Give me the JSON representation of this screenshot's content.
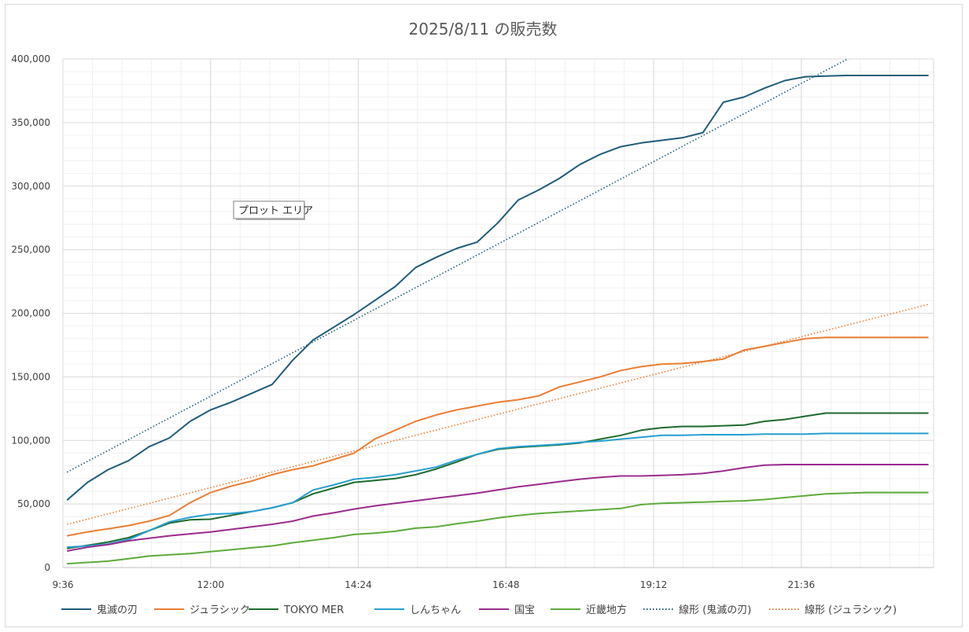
{
  "chart_data": {
    "type": "line",
    "title": "2025/8/11 の販売数",
    "xlabel": "",
    "ylabel": "",
    "ylim": [
      0,
      400000
    ],
    "y_ticks": [
      0,
      50000,
      100000,
      150000,
      200000,
      250000,
      300000,
      350000,
      400000
    ],
    "y_tick_labels": [
      "0",
      "50,000",
      "100,000",
      "150,000",
      "200,000",
      "250,000",
      "300,000",
      "350,000",
      "400,000"
    ],
    "x_ticks": [
      "9:36",
      "12:00",
      "14:24",
      "16:48",
      "19:12",
      "21:36"
    ],
    "x_tick_minutes": [
      576,
      720,
      864,
      1008,
      1152,
      1296
    ],
    "xlim_minutes": [
      576,
      1425
    ],
    "grid": true,
    "legend_position": "bottom",
    "tooltip": "プロット エリア",
    "x_minutes": [
      580,
      600,
      620,
      640,
      660,
      680,
      700,
      720,
      740,
      760,
      780,
      800,
      820,
      840,
      860,
      880,
      900,
      920,
      940,
      960,
      980,
      1000,
      1020,
      1040,
      1060,
      1080,
      1100,
      1120,
      1140,
      1160,
      1180,
      1200,
      1220,
      1240,
      1260,
      1280,
      1300,
      1320,
      1340,
      1360,
      1380,
      1400,
      1420
    ],
    "series": [
      {
        "name": "鬼滅の刃",
        "color": "#1f5c7a",
        "style": "solid",
        "values": [
          53000,
          67000,
          77000,
          84000,
          95000,
          102000,
          115000,
          124000,
          130000,
          137000,
          144000,
          163000,
          179000,
          189000,
          199000,
          210000,
          221000,
          236000,
          244000,
          251000,
          256000,
          271000,
          289000,
          297000,
          306000,
          317000,
          325000,
          331000,
          334000,
          336000,
          338000,
          342000,
          366000,
          370000,
          377000,
          383000,
          386000,
          386500,
          387000,
          387000,
          387000,
          387000,
          387000
        ]
      },
      {
        "name": "ジュラシック",
        "color": "#ed7d31",
        "style": "solid",
        "values": [
          25000,
          28000,
          30500,
          33000,
          36500,
          41000,
          51000,
          59000,
          64000,
          68000,
          73000,
          77000,
          80000,
          85000,
          90000,
          101000,
          108000,
          115000,
          120000,
          124000,
          127000,
          130000,
          132000,
          135000,
          142000,
          146000,
          150000,
          155000,
          158000,
          160000,
          160500,
          162000,
          164000,
          171000,
          174000,
          177000,
          180000,
          181000,
          181000,
          181000,
          181000,
          181000,
          181000
        ]
      },
      {
        "name": "TOKYO MER",
        "color": "#1e6b2e",
        "style": "solid",
        "values": [
          15000,
          17500,
          20000,
          23500,
          29000,
          35000,
          37500,
          38000,
          41000,
          44000,
          47000,
          51000,
          58000,
          62500,
          67000,
          68500,
          70000,
          73000,
          77500,
          83000,
          89000,
          93000,
          94500,
          95500,
          96500,
          98000,
          101000,
          104000,
          108000,
          110000,
          111000,
          111000,
          111500,
          112000,
          115000,
          116500,
          119000,
          121500,
          121500,
          121500,
          121500,
          121500,
          121500
        ]
      },
      {
        "name": "しんちゃん",
        "color": "#26a0d1",
        "style": "solid",
        "values": [
          16000,
          17000,
          18500,
          22000,
          29000,
          36000,
          39500,
          42000,
          42500,
          44000,
          47000,
          51000,
          61000,
          65000,
          69500,
          71000,
          73000,
          76000,
          79000,
          84500,
          89000,
          93500,
          95000,
          96000,
          97000,
          98500,
          99500,
          101000,
          102500,
          104000,
          104000,
          104500,
          104500,
          104500,
          105000,
          105000,
          105000,
          105500,
          105500,
          105500,
          105500,
          105500,
          105500
        ]
      },
      {
        "name": "国宝",
        "color": "#9b2c8e",
        "style": "solid",
        "values": [
          13000,
          16000,
          18000,
          21000,
          23000,
          25000,
          26500,
          28000,
          30000,
          32000,
          34000,
          36500,
          40500,
          43000,
          46000,
          48500,
          50500,
          52500,
          54500,
          56500,
          58500,
          61000,
          63500,
          65500,
          67500,
          69500,
          71000,
          72000,
          72000,
          72500,
          73000,
          74000,
          76000,
          78500,
          80500,
          81000,
          81000,
          81000,
          81000,
          81000,
          81000,
          81000,
          81000
        ]
      },
      {
        "name": "近畿地方",
        "color": "#5dab3c",
        "style": "solid",
        "values": [
          3000,
          4000,
          5000,
          7000,
          9000,
          10000,
          11000,
          12500,
          14000,
          15500,
          17000,
          19500,
          21500,
          23500,
          26000,
          27000,
          28500,
          31000,
          32000,
          34500,
          36500,
          39000,
          41000,
          42500,
          43500,
          44500,
          45500,
          46500,
          49500,
          50500,
          51000,
          51500,
          52000,
          52500,
          53500,
          55000,
          56500,
          58000,
          58500,
          59000,
          59000,
          59000,
          59000
        ]
      },
      {
        "name": "線形 (鬼滅の刃)",
        "color": "#1f5c7a",
        "style": "dotted",
        "trend": {
          "x": [
            580,
            1313,
            1353
          ],
          "y": [
            75000,
            388000,
            405000
          ]
        }
      },
      {
        "name": "線形 (ジュラシック)",
        "color": "#ed7d31",
        "style": "dotted",
        "trend": {
          "x": [
            580,
            1420
          ],
          "y": [
            34000,
            207000
          ]
        }
      }
    ]
  }
}
